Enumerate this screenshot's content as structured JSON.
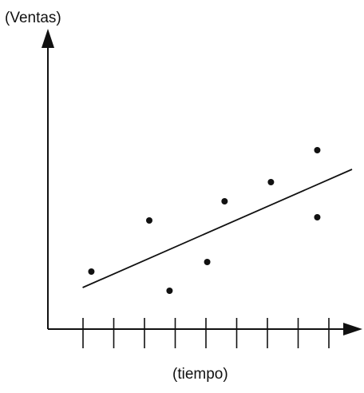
{
  "chart_data": {
    "type": "scatter",
    "title": "",
    "xlabel": "(tiempo)",
    "ylabel": "(Ventas)",
    "x_tick_count": 9,
    "xlim": [
      0,
      10.5
    ],
    "ylim": [
      0,
      10
    ],
    "grid": false,
    "legend": "none",
    "series": [
      {
        "values": [
          {
            "x": 1.5,
            "y": 1.8
          },
          {
            "x": 3.5,
            "y": 3.4
          },
          {
            "x": 4.2,
            "y": 1.2
          },
          {
            "x": 5.5,
            "y": 2.1
          },
          {
            "x": 6.1,
            "y": 4.0
          },
          {
            "x": 7.7,
            "y": 4.6
          },
          {
            "x": 9.3,
            "y": 5.6
          },
          {
            "x": 9.3,
            "y": 3.5
          }
        ]
      }
    ],
    "trend_line": {
      "x": [
        1.2,
        10.5
      ],
      "y": [
        1.3,
        5.0
      ]
    },
    "colors": {
      "ink": "#111111"
    }
  }
}
